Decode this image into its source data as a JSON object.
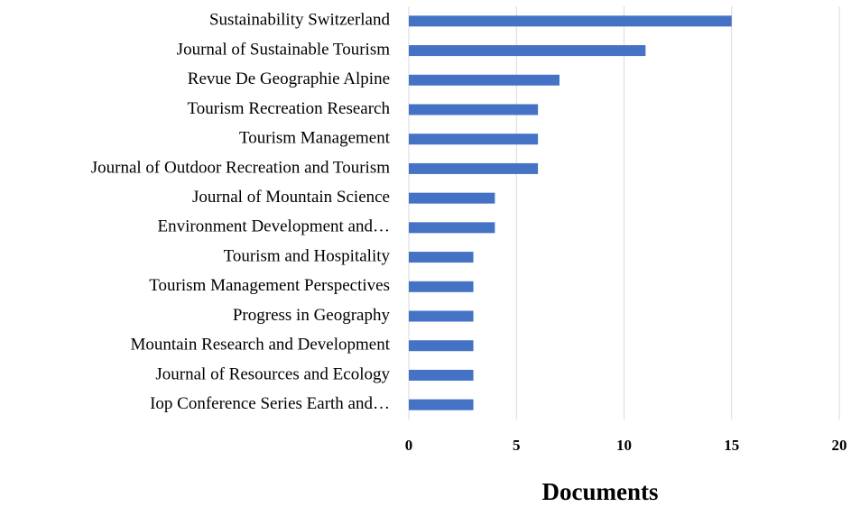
{
  "chart_data": {
    "type": "bar",
    "orientation": "horizontal",
    "x_label": "Documents",
    "categories": [
      "Sustainability Switzerland",
      "Journal of Sustainable Tourism",
      "Revue De Geographie Alpine",
      "Tourism Recreation Research",
      "Tourism Management",
      "Journal of Outdoor Recreation and Tourism",
      "Journal of Mountain Science",
      "Environment Development and…",
      "Tourism and Hospitality",
      "Tourism Management Perspectives",
      "Progress in Geography",
      "Mountain Research and Development",
      "Journal of Resources and Ecology",
      "Iop Conference Series Earth and…"
    ],
    "values": [
      15,
      11,
      7,
      6,
      6,
      6,
      4,
      4,
      3,
      3,
      3,
      3,
      3,
      3
    ],
    "color": "#4472c4",
    "xlim": [
      0,
      20
    ],
    "xticks": [
      0,
      5,
      10,
      15,
      20
    ],
    "grid": true
  }
}
